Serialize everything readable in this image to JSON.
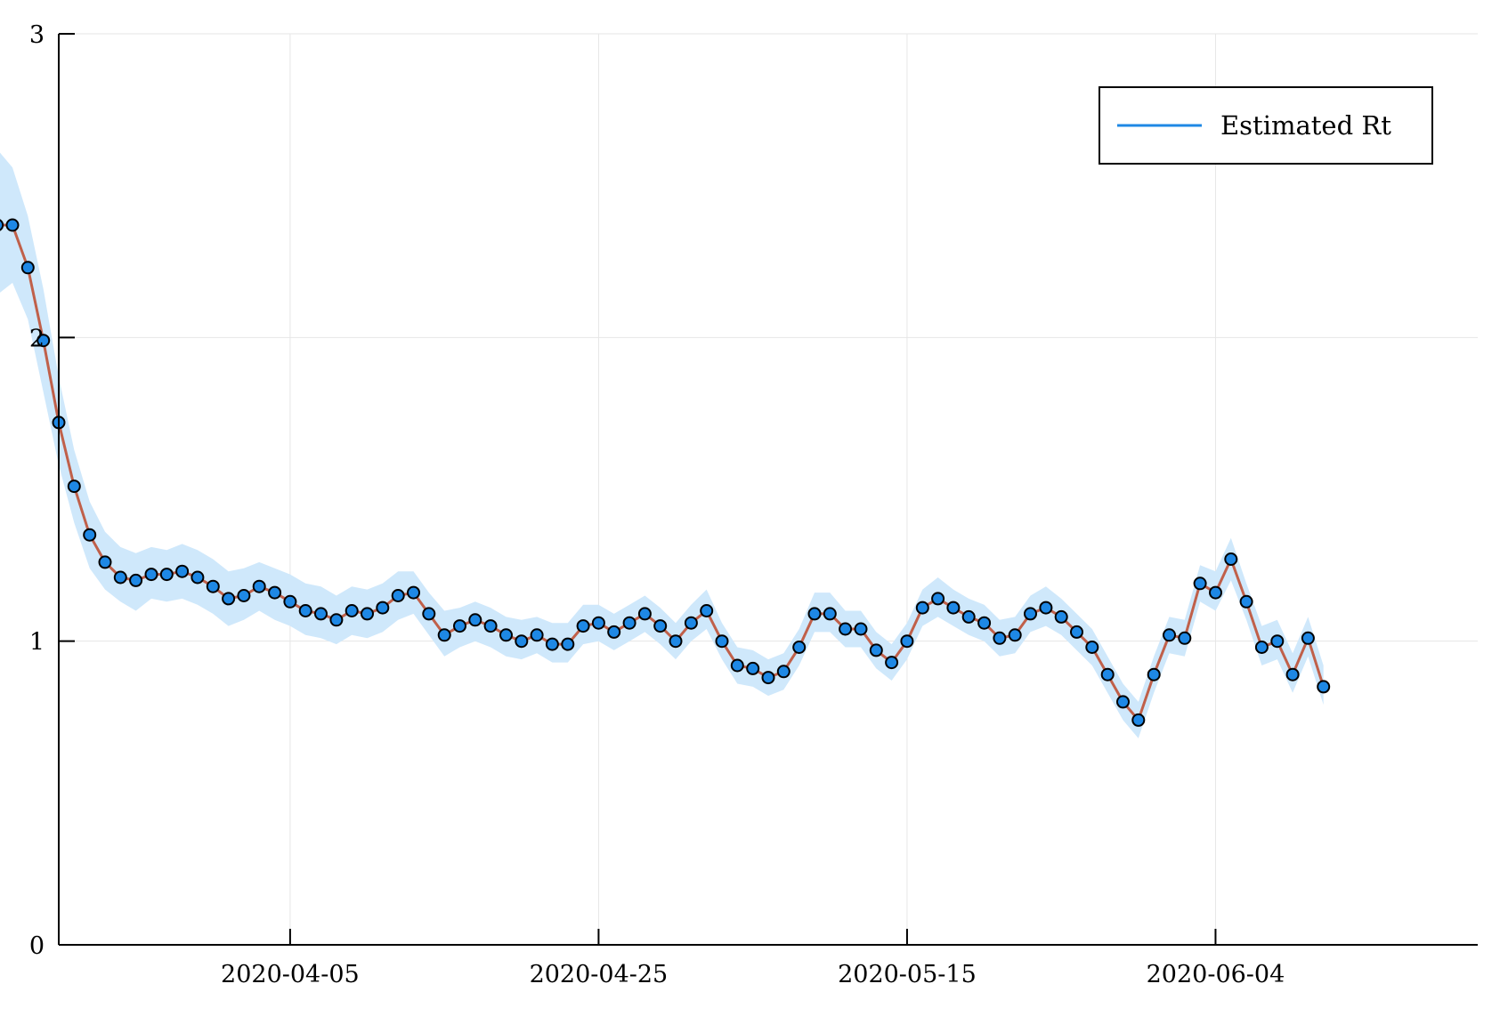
{
  "chart_data": {
    "type": "line",
    "title": "",
    "xlabel": "",
    "ylabel": "",
    "x_start": "2020-03-17",
    "x_end": "2020-06-21",
    "xlim": [
      "2020-03-21",
      "2020-06-21"
    ],
    "ylim": [
      0,
      3
    ],
    "xticks": [
      "2020-04-05",
      "2020-04-25",
      "2020-05-15",
      "2020-06-04"
    ],
    "yticks": [
      0,
      1,
      2,
      3
    ],
    "grid": true,
    "legend": {
      "position": "top-right",
      "entries": [
        "Estimated Rt"
      ]
    },
    "colors": {
      "band": "#cfe8fb",
      "line": "#c0604a",
      "marker": "#1e88e5",
      "marker_edge": "#000000",
      "legend_line": "#1e88e5"
    },
    "series": [
      {
        "name": "Estimated Rt",
        "values": [
          2.37,
          2.37,
          2.23,
          1.99,
          1.72,
          1.51,
          1.35,
          1.26,
          1.21,
          1.2,
          1.22,
          1.22,
          1.23,
          1.21,
          1.18,
          1.14,
          1.15,
          1.18,
          1.16,
          1.13,
          1.1,
          1.09,
          1.07,
          1.1,
          1.09,
          1.11,
          1.15,
          1.16,
          1.09,
          1.02,
          1.05,
          1.07,
          1.05,
          1.02,
          1.0,
          1.02,
          0.99,
          0.99,
          1.05,
          1.06,
          1.03,
          1.06,
          1.09,
          1.05,
          1.0,
          1.06,
          1.1,
          1.0,
          0.92,
          0.91,
          0.88,
          0.9,
          0.98,
          1.09,
          1.09,
          1.04,
          1.04,
          0.97,
          0.93,
          1.0,
          1.11,
          1.14,
          1.11,
          1.08,
          1.06,
          1.01,
          1.02,
          1.09,
          1.11,
          1.08,
          1.03,
          0.98,
          0.89,
          0.8,
          0.74,
          0.89,
          1.02,
          1.01,
          1.19,
          1.16,
          1.27,
          1.13,
          0.98,
          1.0,
          0.89,
          1.01,
          0.85
        ],
        "lower": [
          2.14,
          2.18,
          2.06,
          1.82,
          1.58,
          1.39,
          1.24,
          1.17,
          1.13,
          1.1,
          1.14,
          1.13,
          1.14,
          1.12,
          1.09,
          1.05,
          1.07,
          1.1,
          1.07,
          1.05,
          1.02,
          1.01,
          0.99,
          1.02,
          1.01,
          1.03,
          1.07,
          1.09,
          1.02,
          0.95,
          0.98,
          1.0,
          0.98,
          0.95,
          0.94,
          0.96,
          0.93,
          0.93,
          0.99,
          1.0,
          0.97,
          1.0,
          1.03,
          0.99,
          0.94,
          1.0,
          1.04,
          0.94,
          0.86,
          0.85,
          0.82,
          0.84,
          0.92,
          1.03,
          1.03,
          0.98,
          0.98,
          0.91,
          0.87,
          0.94,
          1.05,
          1.08,
          1.05,
          1.02,
          1.0,
          0.95,
          0.96,
          1.03,
          1.05,
          1.02,
          0.97,
          0.92,
          0.83,
          0.74,
          0.68,
          0.83,
          0.96,
          0.95,
          1.13,
          1.1,
          1.2,
          1.07,
          0.92,
          0.94,
          0.83,
          0.95,
          0.79
        ],
        "upper": [
          2.62,
          2.56,
          2.4,
          2.16,
          1.87,
          1.63,
          1.46,
          1.36,
          1.31,
          1.29,
          1.31,
          1.3,
          1.32,
          1.3,
          1.27,
          1.23,
          1.24,
          1.26,
          1.24,
          1.22,
          1.19,
          1.18,
          1.15,
          1.18,
          1.17,
          1.19,
          1.23,
          1.23,
          1.16,
          1.1,
          1.11,
          1.13,
          1.11,
          1.08,
          1.07,
          1.08,
          1.06,
          1.06,
          1.12,
          1.12,
          1.09,
          1.12,
          1.15,
          1.11,
          1.06,
          1.12,
          1.17,
          1.06,
          0.98,
          0.97,
          0.94,
          0.96,
          1.04,
          1.16,
          1.16,
          1.1,
          1.1,
          1.03,
          0.99,
          1.06,
          1.17,
          1.21,
          1.17,
          1.14,
          1.12,
          1.07,
          1.08,
          1.15,
          1.18,
          1.14,
          1.09,
          1.04,
          0.95,
          0.86,
          0.8,
          0.95,
          1.08,
          1.07,
          1.25,
          1.23,
          1.34,
          1.19,
          1.05,
          1.07,
          0.96,
          1.08,
          0.92
        ]
      }
    ]
  }
}
